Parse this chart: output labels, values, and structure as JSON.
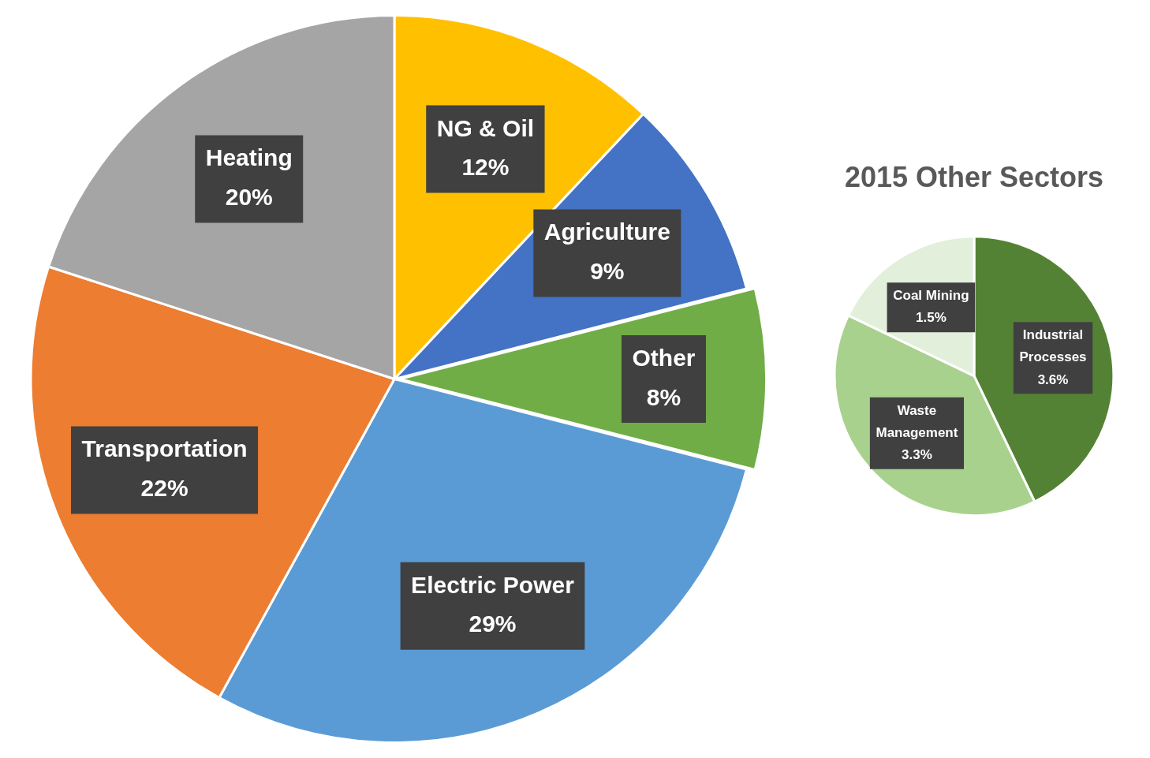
{
  "chart_data": [
    {
      "type": "pie",
      "categories": [
        "NG & Oil",
        "Agriculture",
        "Other",
        "Electric Power",
        "Transportation",
        "Heating"
      ],
      "values": [
        12,
        9,
        8,
        29,
        22,
        20
      ],
      "value_labels": [
        "12%",
        "9%",
        "8%",
        "29%",
        "22%",
        "20%"
      ],
      "colors": [
        "#ffc000",
        "#4472c4",
        "#70ad47",
        "#5b9bd5",
        "#ed7d31",
        "#a5a5a5"
      ],
      "legend": false
    },
    {
      "type": "pie",
      "title": "2015 Other Sectors",
      "categories": [
        "Industrial Processes",
        "Waste Management",
        "Coal Mining"
      ],
      "values": [
        3.6,
        3.3,
        1.5
      ],
      "value_labels": [
        "3.6%",
        "3.3%",
        "1.5%"
      ],
      "colors": [
        "#548235",
        "#a9d18e",
        "#e2efda"
      ],
      "legend": false
    }
  ]
}
